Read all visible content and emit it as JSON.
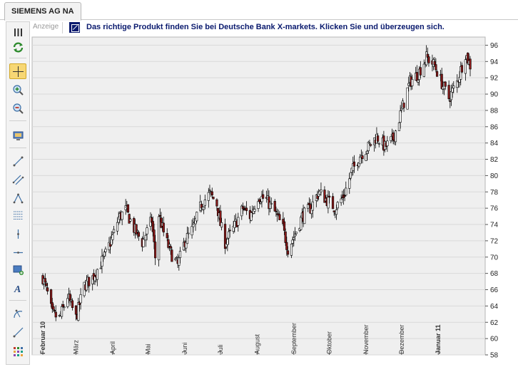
{
  "tab": {
    "title": "SIEMENS AG NA"
  },
  "ad": {
    "label": "Anzeige",
    "text": "Das richtige Produkt finden Sie bei Deutsche Bank X-markets. Klicken Sie und überzeugen sich."
  },
  "toolbar": {
    "tools": [
      {
        "icon": "columns-icon"
      },
      {
        "icon": "refresh-icon"
      },
      {
        "icon": "crosshair-icon",
        "active": true
      },
      {
        "icon": "zoom-in-icon"
      },
      {
        "icon": "zoom-out-icon"
      },
      {
        "icon": "screen-icon"
      },
      {
        "icon": "trend-line-icon"
      },
      {
        "icon": "channel-icon"
      },
      {
        "icon": "triangle-icon"
      },
      {
        "icon": "fibonacci-icon"
      },
      {
        "icon": "vertical-line-icon"
      },
      {
        "icon": "horizontal-line-icon"
      },
      {
        "icon": "rectangle-icon"
      },
      {
        "icon": "text-icon"
      },
      {
        "icon": "arc-icon"
      },
      {
        "icon": "ray-icon"
      },
      {
        "icon": "grid-icon"
      }
    ]
  },
  "colors": {
    "candle_up": "#ffffff",
    "candle_down": "#8b1a1a",
    "wick": "#000000",
    "grid": "#d9d9d9",
    "plot_bg": "#efefef"
  },
  "chart_data": {
    "type": "candlestick",
    "ylim": [
      58,
      97
    ],
    "yticks": [
      58,
      60,
      62,
      64,
      66,
      68,
      70,
      72,
      74,
      76,
      78,
      80,
      82,
      84,
      86,
      88,
      90,
      92,
      94,
      96
    ],
    "y_axis_side": "right",
    "grid": true,
    "xlim": [
      "2010-02-01",
      "2011-01-31"
    ],
    "x_labels": [
      {
        "label": "Februar 10",
        "date": "2010-02-01",
        "bold": true
      },
      {
        "label": "März",
        "date": "2010-03-01"
      },
      {
        "label": "April",
        "date": "2010-04-01"
      },
      {
        "label": "Mai",
        "date": "2010-05-01"
      },
      {
        "label": "Juni",
        "date": "2010-06-01"
      },
      {
        "label": "Juli",
        "date": "2010-07-01"
      },
      {
        "label": "August",
        "date": "2010-08-01"
      },
      {
        "label": "September",
        "date": "2010-09-01"
      },
      {
        "label": "Oktober",
        "date": "2010-10-01"
      },
      {
        "label": "November",
        "date": "2010-11-01"
      },
      {
        "label": "Dezember",
        "date": "2010-12-01"
      },
      {
        "label": "Januar 11",
        "date": "2011-01-01",
        "bold": true
      }
    ],
    "close_path": [
      [
        "2010-02-01",
        67.5
      ],
      [
        "2010-02-05",
        65.5
      ],
      [
        "2010-02-09",
        63.0
      ],
      [
        "2010-02-15",
        62.5
      ],
      [
        "2010-02-22",
        65.2
      ],
      [
        "2010-03-01",
        62.5
      ],
      [
        "2010-03-08",
        66.5
      ],
      [
        "2010-03-15",
        67.5
      ],
      [
        "2010-03-25",
        70.0
      ],
      [
        "2010-04-01",
        72.5
      ],
      [
        "2010-04-06",
        74.8
      ],
      [
        "2010-04-12",
        75.8
      ],
      [
        "2010-04-19",
        73.5
      ],
      [
        "2010-04-26",
        71.8
      ],
      [
        "2010-05-04",
        74.5
      ],
      [
        "2010-05-07",
        70.0
      ],
      [
        "2010-05-10",
        75.2
      ],
      [
        "2010-05-14",
        73.0
      ],
      [
        "2010-05-20",
        70.5
      ],
      [
        "2010-05-26",
        69.0
      ],
      [
        "2010-06-01",
        72.0
      ],
      [
        "2010-06-08",
        73.5
      ],
      [
        "2010-06-15",
        76.5
      ],
      [
        "2010-06-22",
        77.8
      ],
      [
        "2010-06-28",
        76.5
      ],
      [
        "2010-07-01",
        74.0
      ],
      [
        "2010-07-05",
        71.8
      ],
      [
        "2010-07-12",
        73.5
      ],
      [
        "2010-07-20",
        76.0
      ],
      [
        "2010-07-26",
        75.0
      ],
      [
        "2010-08-02",
        77.5
      ],
      [
        "2010-08-09",
        77.0
      ],
      [
        "2010-08-16",
        75.5
      ],
      [
        "2010-08-23",
        73.5
      ],
      [
        "2010-08-27",
        71.0
      ],
      [
        "2010-09-01",
        72.5
      ],
      [
        "2010-09-08",
        75.0
      ],
      [
        "2010-09-15",
        76.0
      ],
      [
        "2010-09-22",
        78.0
      ],
      [
        "2010-09-29",
        77.0
      ],
      [
        "2010-10-06",
        76.0
      ],
      [
        "2010-10-13",
        77.5
      ],
      [
        "2010-10-20",
        80.5
      ],
      [
        "2010-10-27",
        82.5
      ],
      [
        "2010-11-03",
        83.5
      ],
      [
        "2010-11-10",
        84.8
      ],
      [
        "2010-11-17",
        83.5
      ],
      [
        "2010-11-24",
        84.5
      ],
      [
        "2010-12-01",
        88.0
      ],
      [
        "2010-12-08",
        91.5
      ],
      [
        "2010-12-15",
        92.5
      ],
      [
        "2010-12-22",
        94.5
      ],
      [
        "2010-12-29",
        93.5
      ],
      [
        "2011-01-05",
        91.0
      ],
      [
        "2011-01-10",
        89.5
      ],
      [
        "2011-01-17",
        91.5
      ],
      [
        "2011-01-24",
        95.0
      ],
      [
        "2011-01-28",
        93.5
      ]
    ]
  }
}
